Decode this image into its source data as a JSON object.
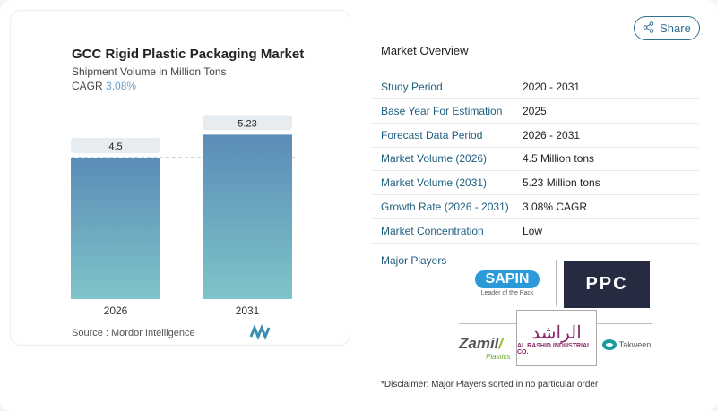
{
  "share": {
    "label": "Share",
    "icon": "share-icon"
  },
  "chart_data": {
    "type": "bar",
    "title": "GCC Rigid Plastic Packaging Market",
    "subtitle": "Shipment Volume in Million Tons",
    "cagr_label": "CAGR",
    "cagr_value": "3.08%",
    "categories": [
      "2026",
      "2031"
    ],
    "values": [
      4.5,
      5.23
    ],
    "data_labels": [
      "4.5",
      "5.23"
    ],
    "ylim": [
      0,
      5.23
    ],
    "reference_line": 4.5,
    "colors": {
      "top": "#5b8cb7",
      "bottom": "#7ec4c9"
    }
  },
  "source": "Source :  Mordor Intelligence",
  "overview": {
    "title": "Market Overview",
    "rows": [
      {
        "k": "Study Period",
        "v": "2020 - 2031"
      },
      {
        "k": "Base Year For Estimation",
        "v": "2025"
      },
      {
        "k": "Forecast Data Period",
        "v": "2026 - 2031"
      },
      {
        "k": "Market Volume (2026)",
        "v": "4.5 Million tons"
      },
      {
        "k": "Market Volume (2031)",
        "v": "5.23 Million tons"
      },
      {
        "k": "Growth Rate (2026 - 2031)",
        "v": "3.08% CAGR"
      },
      {
        "k": "Market Concentration",
        "v": "Low"
      }
    ],
    "major_players": "Major Players",
    "logos": [
      "SAPIN",
      "Leader of the Pack",
      "PPC",
      "Zamil",
      "Plastics",
      "AL RASHID INDUSTRIAL CO.",
      "Takween"
    ],
    "disclaimer": "*Disclaimer: Major Players sorted in no particular order"
  }
}
